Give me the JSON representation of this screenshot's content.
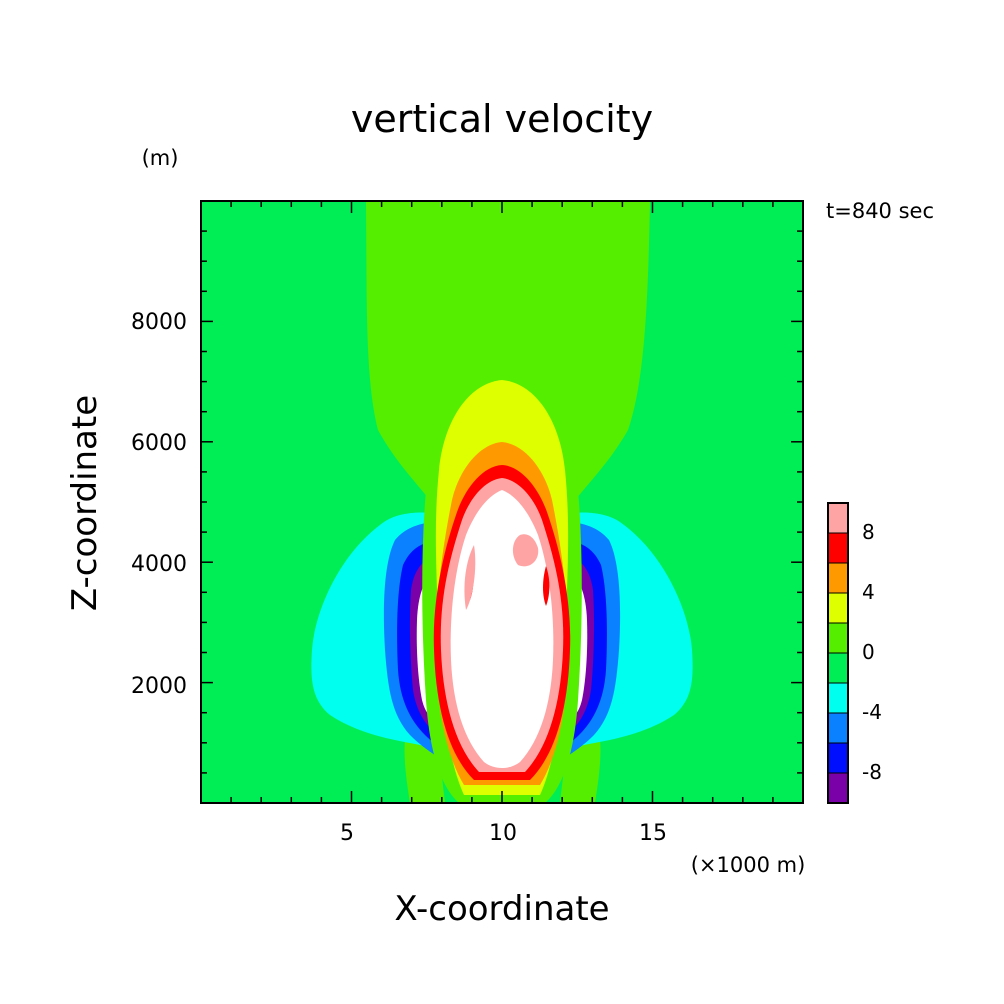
{
  "chart_data": {
    "type": "heatmap",
    "title": "vertical velocity",
    "xlabel": "X-coordinate",
    "ylabel": "Z-coordinate",
    "x_unit": "(×1000 m)",
    "y_unit": "(m)",
    "time_label": "t=840 sec",
    "xlim": [
      0,
      20
    ],
    "ylim": [
      0,
      10000
    ],
    "x_ticks": [
      5,
      10,
      15
    ],
    "y_ticks": [
      2000,
      4000,
      6000,
      8000
    ],
    "colorbar": {
      "levels": [
        -10,
        -8,
        -6,
        -4,
        -2,
        0,
        2,
        4,
        6,
        8,
        10
      ],
      "colors": [
        "#7a00a8",
        "#0010ff",
        "#0a82ff",
        "#00ffee",
        "#00ee55",
        "#55ee00",
        "#ddff00",
        "#ff9900",
        "#ff0000",
        "#ffa4a4"
      ],
      "tick_labels": [
        "-8",
        "-4",
        "0",
        "4",
        "8"
      ],
      "tick_values": [
        -8,
        -4,
        0,
        4,
        8
      ]
    },
    "features": [
      {
        "name": "central updraft core",
        "x_center": 10.0,
        "z_range": [
          200,
          5400
        ],
        "max_value": 10
      },
      {
        "name": "left downdraft",
        "x_center": 7.4,
        "z_range": [
          1000,
          4400
        ],
        "min_value": -10
      },
      {
        "name": "right downdraft",
        "x_center": 12.6,
        "z_range": [
          1000,
          4400
        ],
        "min_value": -10
      },
      {
        "name": "upper plume",
        "x_range": [
          5.4,
          14.8
        ],
        "z_range": [
          5000,
          10000
        ],
        "value_band": [
          0,
          2
        ]
      }
    ]
  }
}
